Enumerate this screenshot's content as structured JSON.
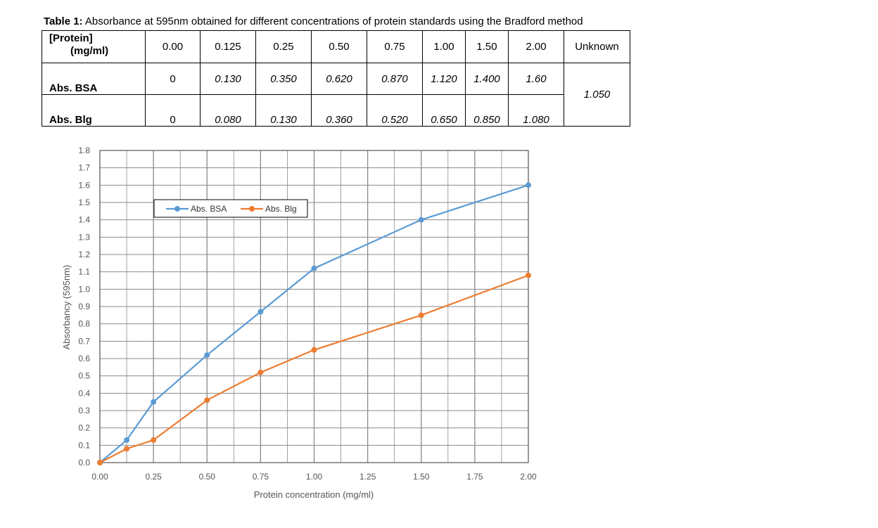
{
  "table": {
    "caption_bold": "Table 1:",
    "caption_text": " Absorbance at 595nm obtained for different concentrations of protein standards using the Bradford method",
    "header_label_line1": "[Protein]",
    "header_label_line2": "(mg/ml)",
    "header": [
      "0.00",
      "0.125",
      "0.25",
      "0.50",
      "0.75",
      "1.00",
      "1.50",
      "2.00",
      "Unknown"
    ],
    "rows": [
      {
        "label": "Abs. BSA",
        "values": [
          "0",
          "0.130",
          "0.350",
          "0.620",
          "0.870",
          "1.120",
          "1.400",
          "1.60"
        ]
      },
      {
        "label": "Abs. Blg",
        "values": [
          "0",
          "0.080",
          "0.130",
          "0.360",
          "0.520",
          "0.650",
          "0.850",
          "1.080"
        ]
      }
    ],
    "unknown_value": "1.050"
  },
  "chart_data": {
    "type": "line",
    "title": "",
    "xlabel": "Protein concentration (mg/ml)",
    "ylabel": "Absorbancy (595nm)",
    "xlim": [
      0,
      2
    ],
    "ylim": [
      0,
      1.8
    ],
    "x_ticks": [
      "0.00",
      "0.25",
      "0.50",
      "0.75",
      "1.00",
      "1.25",
      "1.50",
      "1.75",
      "2.00"
    ],
    "y_ticks": [
      "0.0",
      "0.1",
      "0.2",
      "0.3",
      "0.4",
      "0.5",
      "0.6",
      "0.7",
      "0.8",
      "0.9",
      "1.0",
      "1.1",
      "1.2",
      "1.3",
      "1.4",
      "1.5",
      "1.6",
      "1.7",
      "1.8"
    ],
    "grid": true,
    "legend_position": "top-left",
    "x": [
      0,
      0.125,
      0.25,
      0.5,
      0.75,
      1.0,
      1.5,
      2.0
    ],
    "series": [
      {
        "name": "Abs. BSA",
        "color": "#5b9bd5",
        "values": [
          0,
          0.13,
          0.35,
          0.62,
          0.87,
          1.12,
          1.4,
          1.6
        ]
      },
      {
        "name": "Abs. Blg",
        "color": "#ed7d31",
        "values": [
          0,
          0.08,
          0.13,
          0.36,
          0.52,
          0.65,
          0.85,
          1.08
        ]
      }
    ]
  }
}
